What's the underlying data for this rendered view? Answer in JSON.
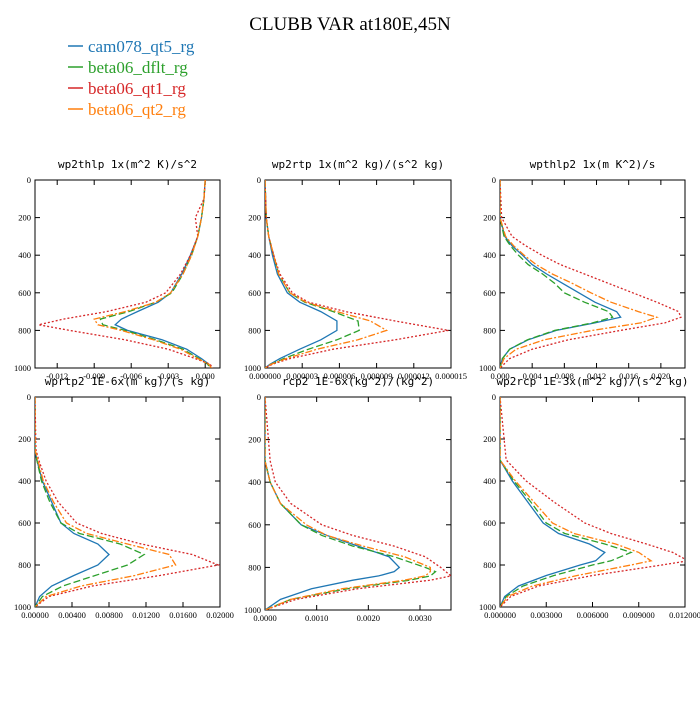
{
  "figure_title": "CLUBB VAR at180E,45N",
  "legend": [
    {
      "label": "cam078_qt5_rg",
      "color": "#1f77b4"
    },
    {
      "label": "beta06_dflt_rg",
      "color": "#2ca02c"
    },
    {
      "label": "beta06_qt1_rg",
      "color": "#d62728"
    },
    {
      "label": "beta06_qt2_rg",
      "color": "#ff7f0e"
    }
  ],
  "chart_data": [
    {
      "type": "line",
      "title": "wp2thlp  1x(m^2 K)/s^2",
      "xlim": [
        -0.0138,
        0.0012
      ],
      "xticks": [
        -0.012,
        -0.009,
        -0.006,
        -0.003,
        0.0
      ],
      "xtick_labels": [
        "-0.012",
        "-0.009",
        "-0.006",
        "-0.003",
        "0.000"
      ],
      "ylim": [
        0,
        1000
      ],
      "yticks": [
        0,
        200,
        400,
        600,
        800,
        1000
      ],
      "ytick_labels": [
        "0",
        "200",
        "400",
        "600",
        "800",
        "1000"
      ],
      "y": [
        0,
        100,
        200,
        300,
        400,
        500,
        600,
        650,
        700,
        740,
        770,
        800,
        850,
        900,
        950,
        980,
        1000
      ],
      "series": [
        {
          "name": "cam078_qt5_rg",
          "values": [
            0.0,
            -0.0001,
            -0.0003,
            -0.0006,
            -0.0012,
            -0.0019,
            -0.0028,
            -0.0038,
            -0.0055,
            -0.0068,
            -0.0073,
            -0.0063,
            -0.0035,
            -0.0015,
            -0.0003,
            0.0003,
            0.0005
          ]
        },
        {
          "name": "beta06_dflt_rg",
          "values": [
            0.0,
            -0.0001,
            -0.0003,
            -0.0006,
            -0.0011,
            -0.0018,
            -0.0027,
            -0.004,
            -0.0062,
            -0.0085,
            -0.0083,
            -0.0065,
            -0.004,
            -0.0018,
            -0.0005,
            0.0002,
            0.0004
          ]
        },
        {
          "name": "beta06_qt1_rg",
          "values": [
            0.0,
            -0.0001,
            -0.0008,
            -0.0006,
            -0.0012,
            -0.002,
            -0.0032,
            -0.0048,
            -0.008,
            -0.0115,
            -0.0135,
            -0.011,
            -0.0065,
            -0.003,
            -0.0008,
            0.0004,
            0.0006
          ]
        },
        {
          "name": "beta06_qt2_rg",
          "values": [
            0.0,
            -0.0001,
            -0.0003,
            -0.0006,
            -0.0011,
            -0.0018,
            -0.0028,
            -0.004,
            -0.0065,
            -0.009,
            -0.0087,
            -0.0068,
            -0.0042,
            -0.002,
            -0.0006,
            0.0003,
            0.0005
          ]
        }
      ]
    },
    {
      "type": "line",
      "title": "wp2rtp  1x(m^2 kg)/(s^2 kg)",
      "xlim": [
        0.0,
        1.5e-05
      ],
      "xticks": [
        0.0,
        3e-06,
        6e-06,
        9e-06,
        1.2e-05,
        1.5e-05
      ],
      "xtick_labels": [
        "0.000000",
        "0.000003",
        "0.000006",
        "0.000009",
        "0.000012",
        "0.000015"
      ],
      "ylim": [
        0,
        1000
      ],
      "yticks": [
        0,
        200,
        400,
        600,
        800,
        1000
      ],
      "ytick_labels": [
        "0",
        "200",
        "400",
        "600",
        "800",
        "1000"
      ],
      "y": [
        0,
        200,
        300,
        400,
        500,
        600,
        650,
        700,
        750,
        800,
        850,
        900,
        950,
        980,
        1000
      ],
      "series": [
        {
          "name": "cam078_qt5_rg",
          "values": [
            0.0,
            1e-07,
            3e-07,
            6e-07,
            1e-06,
            1.8e-06,
            2.8e-06,
            4.5e-06,
            5.8e-06,
            5.8e-06,
            4.5e-06,
            2.8e-06,
            1.2e-06,
            4e-07,
            0.0
          ]
        },
        {
          "name": "beta06_dflt_rg",
          "values": [
            0.0,
            1e-07,
            3e-07,
            7e-07,
            1.1e-06,
            2e-06,
            3.2e-06,
            5.5e-06,
            7.5e-06,
            7.6e-06,
            5.8e-06,
            3.5e-06,
            1.5e-06,
            5e-07,
            0.0
          ]
        },
        {
          "name": "beta06_qt1_rg",
          "values": [
            0.0,
            1e-07,
            3e-07,
            7e-07,
            1.2e-06,
            2.2e-06,
            3.5e-06,
            6.5e-06,
            1.05e-05,
            1.48e-05,
            1.05e-05,
            5.5e-06,
            2e-06,
            6e-07,
            0.0
          ]
        },
        {
          "name": "beta06_qt2_rg",
          "values": [
            0.0,
            1e-07,
            3e-07,
            7e-07,
            1.1e-06,
            2e-06,
            3.3e-06,
            5.8e-06,
            8.5e-06,
            9.8e-06,
            7.5e-06,
            4.2e-06,
            1.7e-06,
            5e-07,
            0.0
          ]
        }
      ]
    },
    {
      "type": "line",
      "title": "wpthlp2  1x(m K^2)/s",
      "xlim": [
        0.0,
        0.023
      ],
      "xticks": [
        0.0,
        0.004,
        0.008,
        0.012,
        0.016,
        0.02
      ],
      "xtick_labels": [
        "0.000",
        "0.004",
        "0.008",
        "0.012",
        "0.016",
        "0.020"
      ],
      "ylim": [
        0,
        1000
      ],
      "yticks": [
        0,
        200,
        400,
        600,
        800,
        1000
      ],
      "ytick_labels": [
        "0",
        "200",
        "400",
        "600",
        "800",
        "1000"
      ],
      "y": [
        0,
        200,
        300,
        350,
        400,
        450,
        500,
        550,
        600,
        650,
        700,
        730,
        760,
        800,
        850,
        900,
        950,
        1000
      ],
      "series": [
        {
          "name": "cam078_qt5_rg",
          "values": [
            0.0,
            0.0,
            0.0006,
            0.0015,
            0.0028,
            0.004,
            0.0058,
            0.0078,
            0.0098,
            0.0118,
            0.0145,
            0.015,
            0.0118,
            0.007,
            0.0035,
            0.0012,
            0.0003,
            0.0
          ]
        },
        {
          "name": "beta06_dflt_rg",
          "values": [
            0.0,
            0.0,
            0.0005,
            0.0013,
            0.0023,
            0.0035,
            0.0053,
            0.0068,
            0.008,
            0.0105,
            0.0135,
            0.014,
            0.0115,
            0.0068,
            0.0034,
            0.0012,
            0.0003,
            0.0
          ]
        },
        {
          "name": "beta06_qt1_rg",
          "values": [
            0.0,
            0.0002,
            0.0015,
            0.0032,
            0.0052,
            0.0075,
            0.0105,
            0.0135,
            0.0165,
            0.0195,
            0.0222,
            0.0225,
            0.0205,
            0.015,
            0.0085,
            0.004,
            0.0012,
            0.0
          ]
        },
        {
          "name": "beta06_qt2_rg",
          "values": [
            0.0,
            0.0,
            0.0007,
            0.0017,
            0.003,
            0.0045,
            0.0065,
            0.009,
            0.0113,
            0.0138,
            0.0172,
            0.0195,
            0.0175,
            0.0115,
            0.0055,
            0.002,
            0.0005,
            0.0
          ]
        }
      ]
    },
    {
      "type": "line",
      "title": "wprtp2  1E-6x(m kg)/(s kg)",
      "xlim": [
        0.0,
        0.02
      ],
      "xticks": [
        0.0,
        0.004,
        0.008,
        0.012,
        0.016,
        0.02
      ],
      "xtick_labels": [
        "0.00000",
        "0.00400",
        "0.00800",
        "0.01200",
        "0.01600",
        "0.02000"
      ],
      "ylim": [
        0,
        1000
      ],
      "yticks": [
        0,
        200,
        400,
        600,
        800,
        1000
      ],
      "ytick_labels": [
        "0",
        "200",
        "400",
        "600",
        "800",
        "1000"
      ],
      "y": [
        0,
        250,
        300,
        400,
        500,
        600,
        650,
        700,
        750,
        800,
        850,
        900,
        950,
        1000
      ],
      "series": [
        {
          "name": "cam078_qt5_rg",
          "values": [
            0.0,
            0.0,
            0.0002,
            0.0008,
            0.0018,
            0.0028,
            0.0042,
            0.0068,
            0.008,
            0.0068,
            0.0042,
            0.0018,
            0.0005,
            0.0
          ]
        },
        {
          "name": "beta06_dflt_rg",
          "values": [
            0.0,
            0.0,
            0.0002,
            0.0007,
            0.0016,
            0.0028,
            0.0048,
            0.0092,
            0.0118,
            0.01,
            0.0065,
            0.003,
            0.0008,
            0.0
          ]
        },
        {
          "name": "beta06_qt1_rg",
          "values": [
            0.0,
            0.0001,
            0.0004,
            0.0012,
            0.0025,
            0.0045,
            0.0072,
            0.0115,
            0.017,
            0.0198,
            0.0135,
            0.0062,
            0.0015,
            0.0
          ]
        },
        {
          "name": "beta06_qt2_rg",
          "values": [
            0.0,
            0.0,
            0.0003,
            0.0009,
            0.002,
            0.0034,
            0.0056,
            0.01,
            0.0145,
            0.0152,
            0.0108,
            0.005,
            0.0012,
            0.0
          ]
        }
      ]
    },
    {
      "type": "line",
      "title": "rcp2  1E-6x(kg^2)/(kg^2)",
      "xlim": [
        0.0,
        0.0036
      ],
      "xticks": [
        0.0,
        0.001,
        0.002,
        0.003
      ],
      "xtick_labels": [
        "0.0000",
        "0.0010",
        "0.0020",
        "0.0030"
      ],
      "ylim": [
        0,
        1000
      ],
      "yticks": [
        0,
        200,
        400,
        600,
        800,
        1000
      ],
      "ytick_labels": [
        "0",
        "200",
        "400",
        "600",
        "800",
        "1000"
      ],
      "y": [
        0,
        300,
        400,
        500,
        600,
        650,
        700,
        750,
        800,
        820,
        840,
        860,
        900,
        950,
        1000
      ],
      "series": [
        {
          "name": "cam078_qt5_rg",
          "values": [
            0.0,
            0.0,
            0.0001,
            0.0003,
            0.0007,
            0.0012,
            0.0018,
            0.0024,
            0.0026,
            0.0025,
            0.0022,
            0.0017,
            0.0009,
            0.0003,
            0.0
          ]
        },
        {
          "name": "beta06_dflt_rg",
          "values": [
            0.0,
            0.0,
            0.0001,
            0.0003,
            0.0007,
            0.0011,
            0.0017,
            0.0025,
            0.0031,
            0.0033,
            0.0032,
            0.0028,
            0.0016,
            0.0005,
            0.0
          ]
        },
        {
          "name": "beta06_qt1_rg",
          "values": [
            0.0,
            0.0001,
            0.0002,
            0.0005,
            0.0011,
            0.0017,
            0.0025,
            0.0031,
            0.0034,
            0.0035,
            0.0036,
            0.0032,
            0.0018,
            0.0006,
            0.0
          ]
        },
        {
          "name": "beta06_qt2_rg",
          "values": [
            0.0,
            0.0,
            0.0001,
            0.0003,
            0.0008,
            0.0012,
            0.0019,
            0.0027,
            0.0032,
            0.0032,
            0.0031,
            0.0027,
            0.0015,
            0.0005,
            0.0
          ]
        }
      ]
    },
    {
      "type": "line",
      "title": "wp2rcp  1E-3x(m^2 kg)/(s^2 kg)",
      "xlim": [
        0.0,
        0.012
      ],
      "xticks": [
        0.0,
        0.003,
        0.006,
        0.009,
        0.012
      ],
      "xtick_labels": [
        "0.000000",
        "0.003000",
        "0.006000",
        "0.009000",
        "0.012000"
      ],
      "ylim": [
        0,
        1000
      ],
      "yticks": [
        0,
        200,
        400,
        600,
        800,
        1000
      ],
      "ytick_labels": [
        "0",
        "200",
        "400",
        "600",
        "800",
        "1000"
      ],
      "y": [
        0,
        300,
        400,
        500,
        600,
        650,
        700,
        740,
        780,
        800,
        850,
        900,
        950,
        1000
      ],
      "series": [
        {
          "name": "cam078_qt5_rg",
          "values": [
            0.0,
            0.0,
            0.0008,
            0.0018,
            0.0028,
            0.0038,
            0.0058,
            0.0068,
            0.0062,
            0.0052,
            0.003,
            0.0012,
            0.0003,
            0.0
          ]
        },
        {
          "name": "beta06_dflt_rg",
          "values": [
            0.0,
            0.0,
            0.0009,
            0.002,
            0.003,
            0.0042,
            0.0068,
            0.0085,
            0.0072,
            0.006,
            0.0035,
            0.0015,
            0.0004,
            0.0
          ]
        },
        {
          "name": "beta06_qt1_rg",
          "values": [
            0.0,
            0.0004,
            0.0017,
            0.0035,
            0.0055,
            0.0072,
            0.0095,
            0.0112,
            0.0122,
            0.0105,
            0.006,
            0.0025,
            0.0007,
            0.0
          ]
        },
        {
          "name": "beta06_qt2_rg",
          "values": [
            0.0,
            0.0,
            0.001,
            0.0022,
            0.0034,
            0.0048,
            0.0075,
            0.009,
            0.0098,
            0.0085,
            0.005,
            0.0021,
            0.0005,
            0.0
          ]
        }
      ]
    }
  ]
}
